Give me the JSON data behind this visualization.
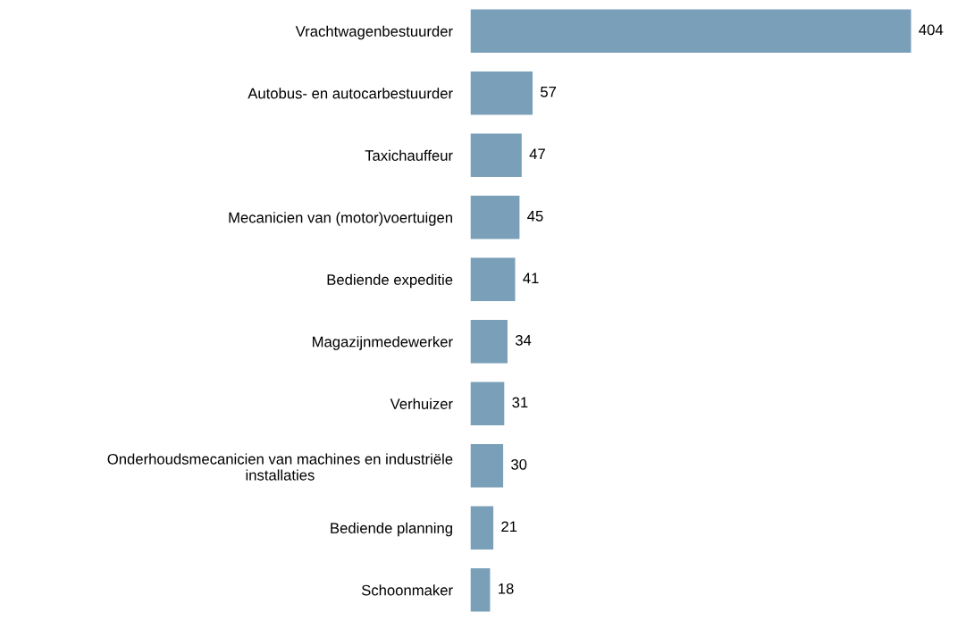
{
  "chart_data": {
    "type": "bar",
    "orientation": "horizontal",
    "categories": [
      "Vrachtwagenbestuurder",
      "Autobus- en autocarbestuurder",
      "Taxichauffeur",
      "Mecanicien van (motor)voertuigen",
      "Bediende expeditie",
      "Magazijnmedewerker",
      "Verhuizer",
      "Onderhoudsmecanicien van machines en industriële\ninstallaties",
      "Bediende planning",
      "Schoonmaker"
    ],
    "values": [
      404,
      57,
      47,
      45,
      41,
      34,
      31,
      30,
      21,
      18
    ],
    "color": "#7aa0b9",
    "data_labels": true,
    "grid": false,
    "legend": false,
    "tick_labels": "y"
  }
}
